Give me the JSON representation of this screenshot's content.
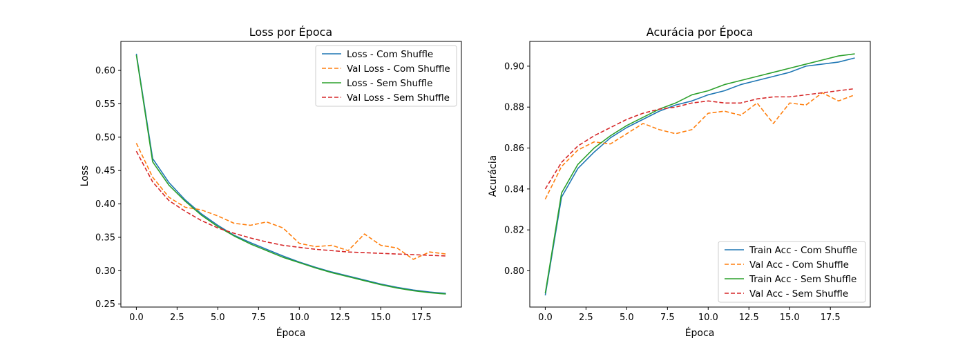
{
  "chart_data": [
    {
      "type": "line",
      "title": "Loss por Época",
      "xlabel": "Época",
      "ylabel": "Loss",
      "xlim": [
        -0.95,
        19.95
      ],
      "ylim": [
        0.2455,
        0.6435
      ],
      "xticks": [
        0.0,
        2.5,
        5.0,
        7.5,
        10.0,
        12.5,
        15.0,
        17.5
      ],
      "xtick_labels": [
        "0.0",
        "2.5",
        "5.0",
        "7.5",
        "10.0",
        "12.5",
        "15.0",
        "17.5"
      ],
      "yticks": [
        0.25,
        0.3,
        0.35,
        0.4,
        0.45,
        0.5,
        0.55,
        0.6
      ],
      "ytick_labels": [
        "0.25",
        "0.30",
        "0.35",
        "0.40",
        "0.45",
        "0.50",
        "0.55",
        "0.60"
      ],
      "grid": false,
      "legend_position": "top-right",
      "x": [
        0,
        1,
        2,
        3,
        4,
        5,
        6,
        7,
        8,
        9,
        10,
        11,
        12,
        13,
        14,
        15,
        16,
        17,
        18,
        19
      ],
      "series": [
        {
          "name": "Loss - Com Shuffle",
          "color": "#1f77b4",
          "dash": "solid",
          "values": [
            0.625,
            0.468,
            0.432,
            0.406,
            0.385,
            0.368,
            0.353,
            0.342,
            0.332,
            0.322,
            0.313,
            0.305,
            0.298,
            0.292,
            0.286,
            0.28,
            0.275,
            0.271,
            0.268,
            0.266
          ]
        },
        {
          "name": "Val Loss - Com Shuffle",
          "color": "#ff7f0e",
          "dash": "dashed",
          "values": [
            0.491,
            0.44,
            0.41,
            0.395,
            0.391,
            0.382,
            0.371,
            0.368,
            0.373,
            0.364,
            0.341,
            0.336,
            0.338,
            0.33,
            0.355,
            0.338,
            0.334,
            0.317,
            0.328,
            0.325
          ]
        },
        {
          "name": "Loss - Sem Shuffle",
          "color": "#2ca02c",
          "dash": "solid",
          "values": [
            0.623,
            0.463,
            0.428,
            0.404,
            0.383,
            0.366,
            0.352,
            0.34,
            0.33,
            0.32,
            0.312,
            0.304,
            0.297,
            0.291,
            0.285,
            0.279,
            0.274,
            0.27,
            0.267,
            0.265
          ]
        },
        {
          "name": "Val Loss - Sem Shuffle",
          "color": "#d62728",
          "dash": "dashed",
          "values": [
            0.479,
            0.433,
            0.405,
            0.389,
            0.375,
            0.364,
            0.356,
            0.349,
            0.343,
            0.338,
            0.335,
            0.332,
            0.33,
            0.328,
            0.327,
            0.326,
            0.325,
            0.324,
            0.323,
            0.322
          ]
        }
      ]
    },
    {
      "type": "line",
      "title": "Acurácia por Época",
      "xlabel": "Época",
      "ylabel": "Acurácia",
      "xlim": [
        -0.95,
        19.95
      ],
      "ylim": [
        0.7823,
        0.9121
      ],
      "xticks": [
        0.0,
        2.5,
        5.0,
        7.5,
        10.0,
        12.5,
        15.0,
        17.5
      ],
      "xtick_labels": [
        "0.0",
        "2.5",
        "5.0",
        "7.5",
        "10.0",
        "12.5",
        "15.0",
        "17.5"
      ],
      "yticks": [
        0.8,
        0.82,
        0.84,
        0.86,
        0.88,
        0.9
      ],
      "ytick_labels": [
        "0.80",
        "0.82",
        "0.84",
        "0.86",
        "0.88",
        "0.90"
      ],
      "grid": false,
      "legend_position": "bottom-right",
      "x": [
        0,
        1,
        2,
        3,
        4,
        5,
        6,
        7,
        8,
        9,
        10,
        11,
        12,
        13,
        14,
        15,
        16,
        17,
        18,
        19
      ],
      "series": [
        {
          "name": "Train Acc - Com Shuffle",
          "color": "#1f77b4",
          "dash": "solid",
          "values": [
            0.788,
            0.836,
            0.85,
            0.858,
            0.865,
            0.87,
            0.874,
            0.878,
            0.881,
            0.883,
            0.886,
            0.888,
            0.891,
            0.893,
            0.895,
            0.897,
            0.9,
            0.901,
            0.902,
            0.904
          ]
        },
        {
          "name": "Val Acc - Com Shuffle",
          "color": "#ff7f0e",
          "dash": "dashed",
          "values": [
            0.835,
            0.851,
            0.859,
            0.863,
            0.862,
            0.867,
            0.872,
            0.869,
            0.867,
            0.869,
            0.877,
            0.878,
            0.876,
            0.882,
            0.872,
            0.882,
            0.881,
            0.887,
            0.883,
            0.886
          ]
        },
        {
          "name": "Train Acc - Sem Shuffle",
          "color": "#2ca02c",
          "dash": "solid",
          "values": [
            0.789,
            0.838,
            0.852,
            0.86,
            0.866,
            0.871,
            0.875,
            0.879,
            0.882,
            0.886,
            0.888,
            0.891,
            0.893,
            0.895,
            0.897,
            0.899,
            0.901,
            0.903,
            0.905,
            0.906
          ]
        },
        {
          "name": "Val Acc - Sem Shuffle",
          "color": "#d62728",
          "dash": "dashed",
          "values": [
            0.84,
            0.853,
            0.861,
            0.866,
            0.87,
            0.874,
            0.877,
            0.879,
            0.88,
            0.882,
            0.883,
            0.882,
            0.882,
            0.884,
            0.885,
            0.885,
            0.886,
            0.887,
            0.888,
            0.889
          ]
        }
      ]
    }
  ]
}
